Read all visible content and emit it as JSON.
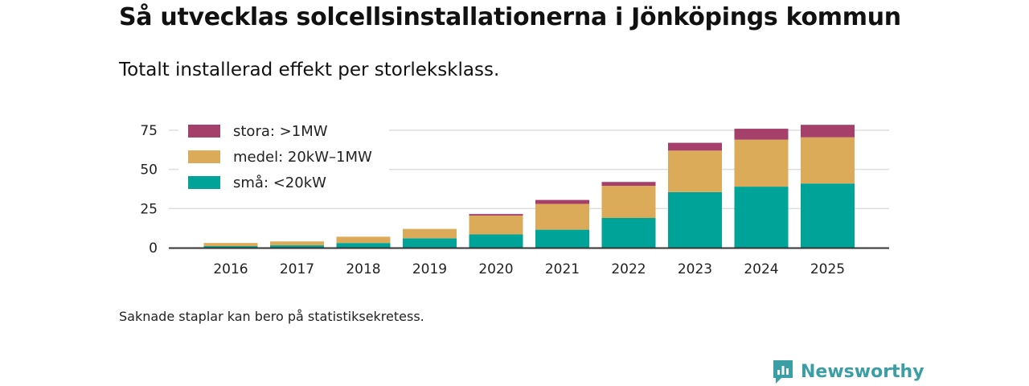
{
  "header": {
    "title": "Så utvecklas solcellsinstallationerna i Jönköpings kommun",
    "subtitle": "Totalt installerad effekt per storleksklass."
  },
  "footnote": "Saknade staplar kan bero på statistiksekretess.",
  "brand": {
    "name": "Newsworthy",
    "icon": "newsworthy-logo-icon",
    "color": "#3a9ea5"
  },
  "chart_data": {
    "type": "bar",
    "stacked": true,
    "title": "Så utvecklas solcellsinstallationerna i Jönköpings kommun",
    "subtitle": "Totalt installerad effekt per storleksklass.",
    "xlabel": "",
    "ylabel": "",
    "ylim": [
      0,
      80
    ],
    "yticks": [
      0,
      25,
      50,
      75
    ],
    "grid": true,
    "legend_position": "top-left",
    "categories": [
      "2016",
      "2017",
      "2018",
      "2019",
      "2020",
      "2021",
      "2022",
      "2023",
      "2024",
      "2025"
    ],
    "series": [
      {
        "name": "små: <20kW",
        "color": "#00a398",
        "values": [
          1,
          1.5,
          3,
          6,
          8.5,
          11.5,
          19,
          35.5,
          39,
          41
        ]
      },
      {
        "name": "medel: 20kW–1MW",
        "color": "#dbab59",
        "values": [
          2,
          2.5,
          4,
          6,
          12,
          16.5,
          20.5,
          26.5,
          30,
          29.5
        ]
      },
      {
        "name": "stora: >1MW",
        "color": "#a4406a",
        "values": [
          0,
          0,
          0,
          0,
          1,
          2.5,
          2.5,
          5,
          7,
          8
        ]
      }
    ],
    "legend_order": [
      "stora: >1MW",
      "medel: 20kW–1MW",
      "små: <20kW"
    ]
  }
}
